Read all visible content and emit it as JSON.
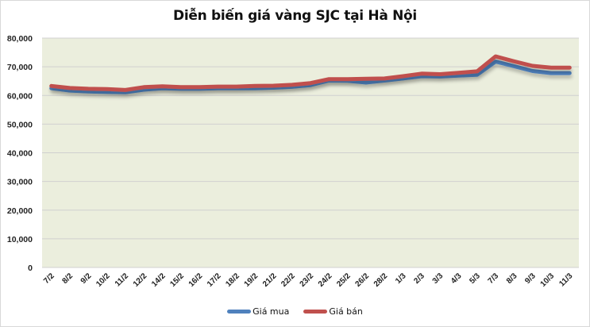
{
  "chart_data": {
    "type": "line",
    "title": "Diễn biến giá vàng SJC tại Hà Nội",
    "xlabel": "",
    "ylabel": "",
    "ylim": [
      0,
      80000
    ],
    "yticks": [
      0,
      10000,
      20000,
      30000,
      40000,
      50000,
      60000,
      70000,
      80000
    ],
    "ytick_labels": [
      "0",
      "10,000",
      "20,000",
      "30,000",
      "40,000",
      "50,000",
      "60,000",
      "70,000",
      "80,000"
    ],
    "grid": true,
    "legend_position": "bottom",
    "categories": [
      "7/2",
      "8/2",
      "9/2",
      "10/2",
      "11/2",
      "12/2",
      "14/2",
      "15/2",
      "16/2",
      "17/2",
      "18/2",
      "19/2",
      "21/2",
      "22/2",
      "23/2",
      "24/2",
      "25/2",
      "26/2",
      "28/2",
      "1/3",
      "2/3",
      "3/3",
      "4/3",
      "5/3",
      "7/3",
      "8/3",
      "9/3",
      "10/3",
      "11/3"
    ],
    "series": [
      {
        "name": "Giá mua",
        "color": "#4f81bd",
        "values": [
          62500,
          61700,
          61400,
          61200,
          61100,
          62000,
          62500,
          62300,
          62300,
          62500,
          62500,
          62500,
          62700,
          63000,
          63600,
          65200,
          65100,
          64500,
          65200,
          65900,
          66700,
          66600,
          66900,
          67200,
          71800,
          70200,
          68500,
          67800,
          67800
        ]
      },
      {
        "name": "Giá bán",
        "color": "#c0504d",
        "values": [
          63300,
          62600,
          62300,
          62200,
          61900,
          62900,
          63200,
          62900,
          62900,
          63100,
          63100,
          63300,
          63400,
          63700,
          64300,
          65700,
          65700,
          65800,
          65900,
          66700,
          67600,
          67400,
          67900,
          68400,
          73600,
          71900,
          70300,
          69700,
          69700
        ]
      }
    ]
  },
  "legend": {
    "items": [
      {
        "label": "Giá mua",
        "color": "#4f81bd"
      },
      {
        "label": "Giá bán",
        "color": "#c0504d"
      }
    ]
  },
  "plot_style": {
    "background": "#ebeedd",
    "gridline_color": "#d0d0d0"
  }
}
